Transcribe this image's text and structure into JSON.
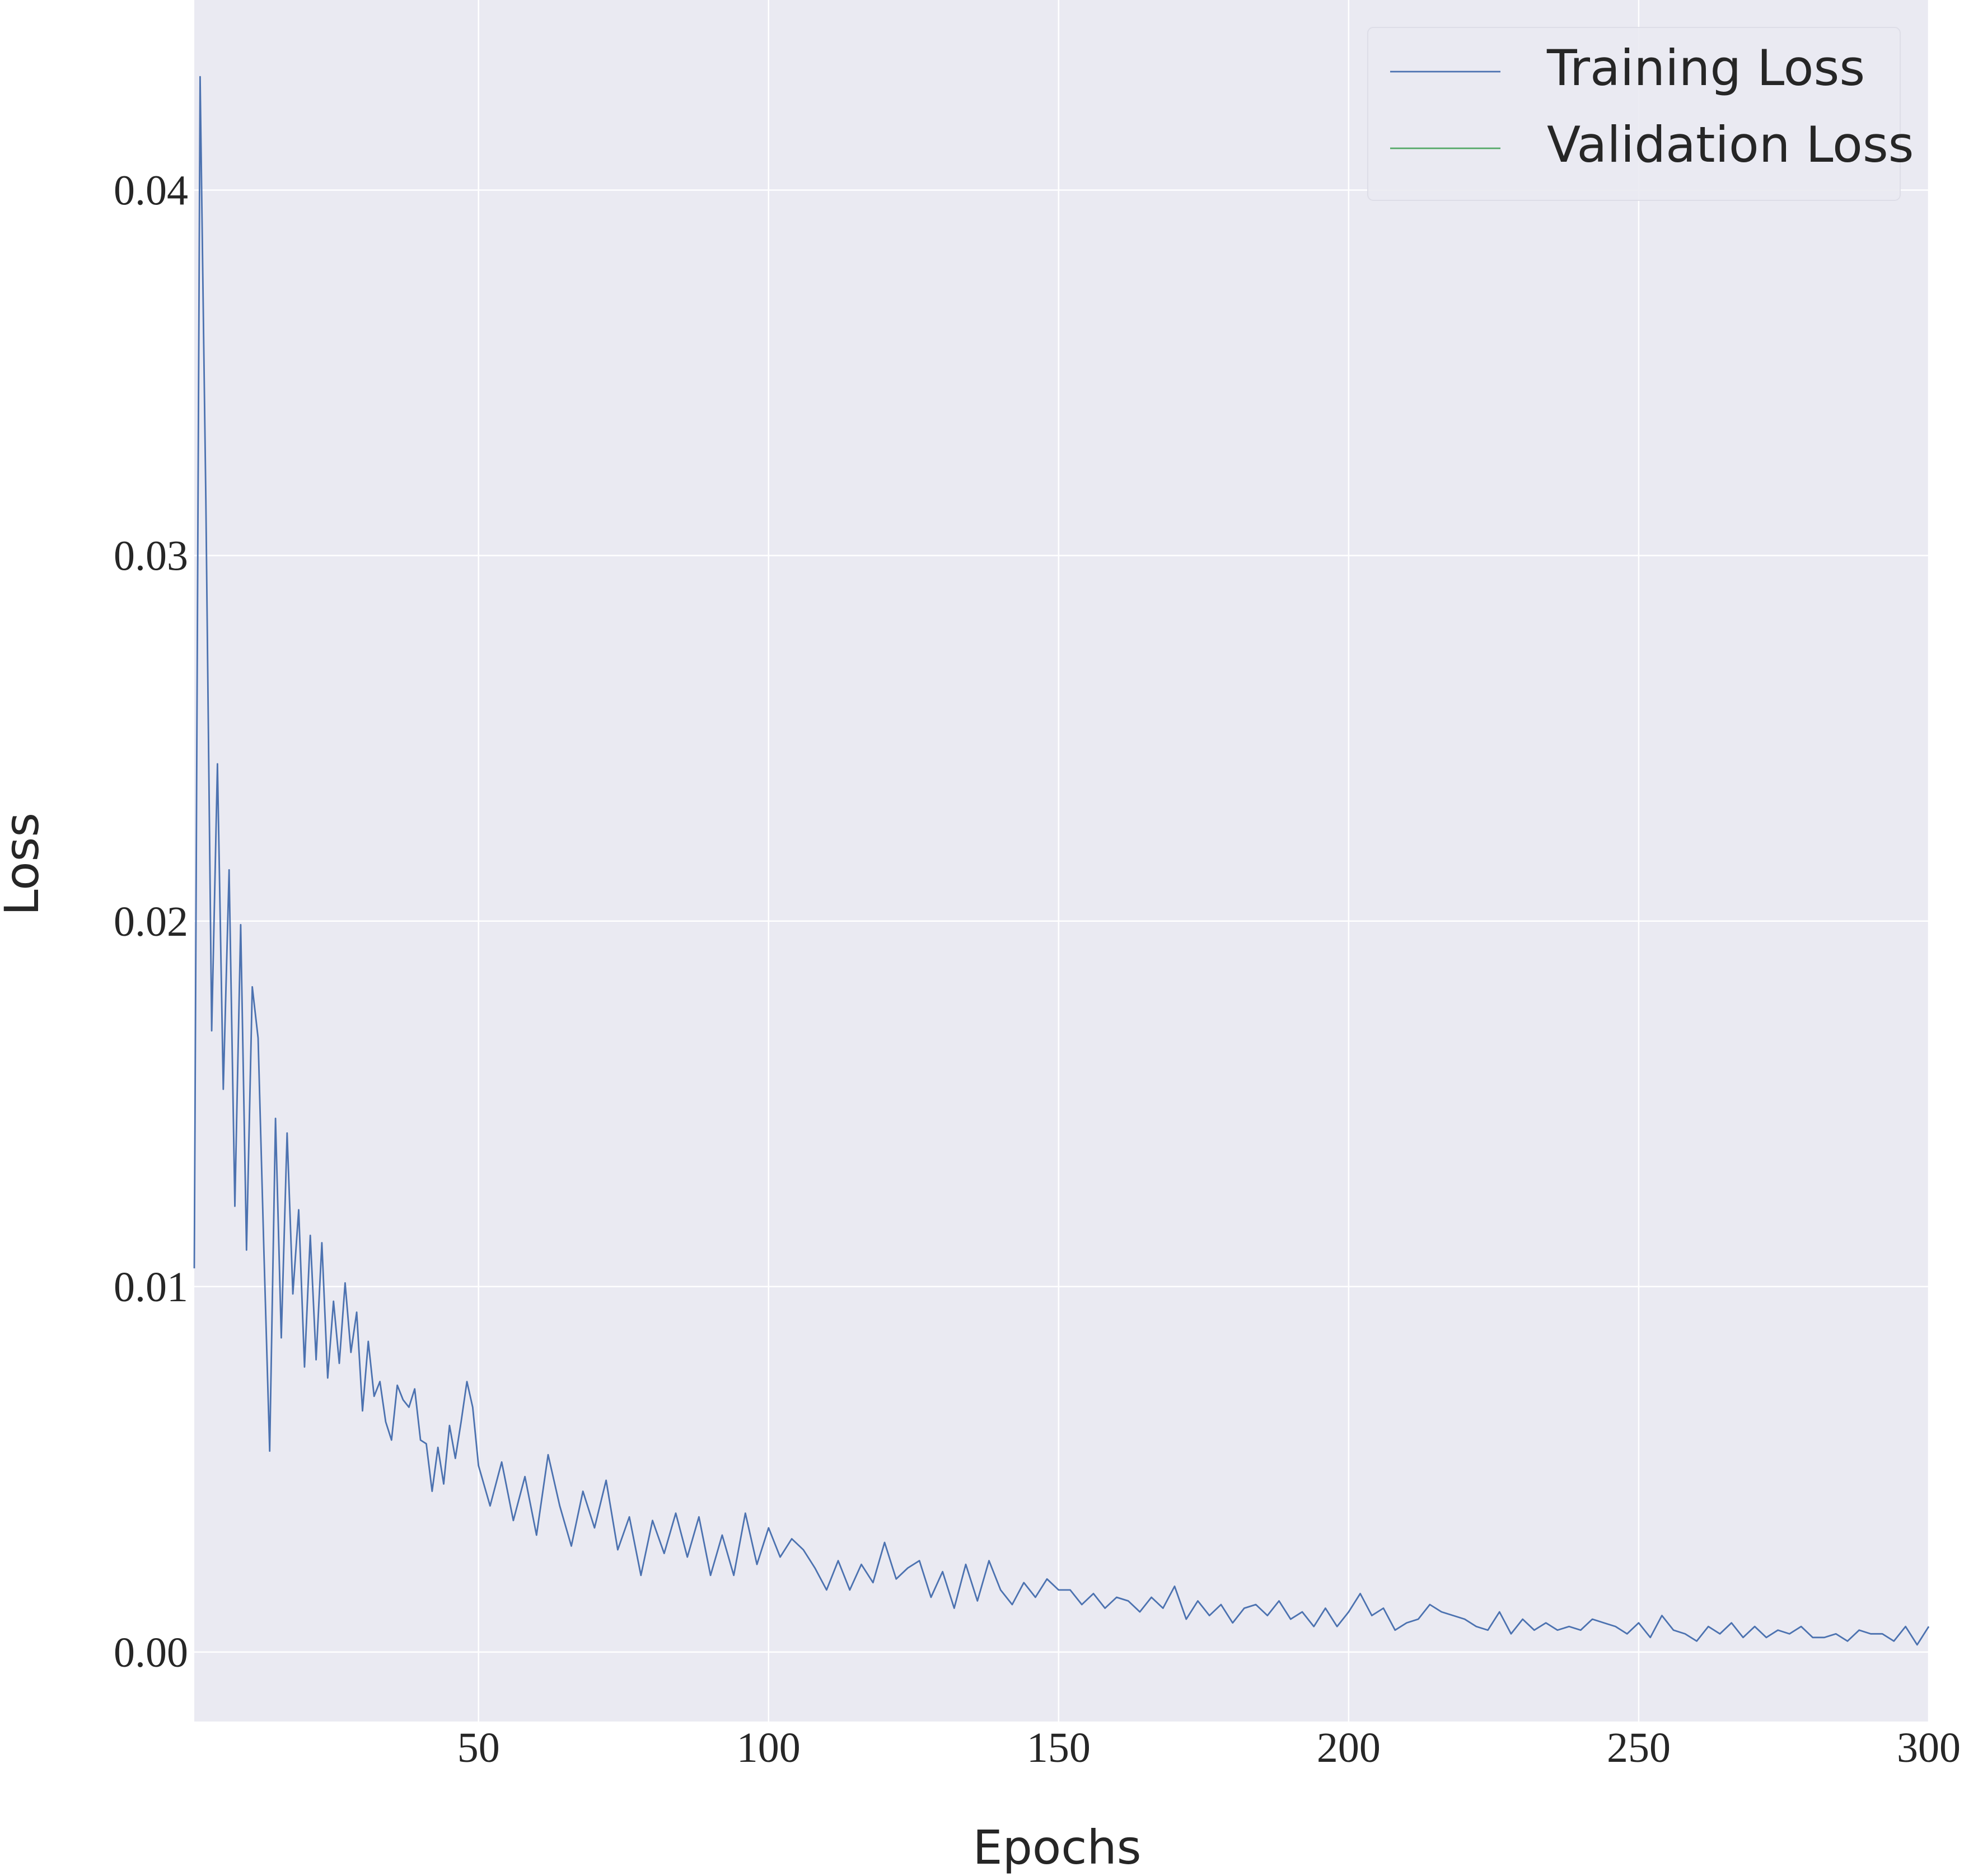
{
  "chart_data": {
    "type": "line",
    "x": [
      1,
      2,
      3,
      4,
      5,
      6,
      7,
      8,
      9,
      10,
      11,
      12,
      13,
      14,
      15,
      16,
      17,
      18,
      19,
      20,
      21,
      22,
      23,
      24,
      25,
      26,
      27,
      28,
      29,
      30,
      31,
      32,
      33,
      34,
      35,
      36,
      37,
      38,
      39,
      40,
      41,
      42,
      43,
      44,
      45,
      46,
      47,
      48,
      49,
      50,
      52,
      54,
      56,
      58,
      60,
      62,
      64,
      66,
      68,
      70,
      72,
      74,
      76,
      78,
      80,
      82,
      84,
      86,
      88,
      90,
      92,
      94,
      96,
      98,
      100,
      102,
      104,
      106,
      108,
      110,
      112,
      114,
      116,
      118,
      120,
      122,
      124,
      126,
      128,
      130,
      132,
      134,
      136,
      138,
      140,
      142,
      144,
      146,
      148,
      150,
      152,
      154,
      156,
      158,
      160,
      162,
      164,
      166,
      168,
      170,
      172,
      174,
      176,
      178,
      180,
      182,
      184,
      186,
      188,
      190,
      192,
      194,
      196,
      198,
      200,
      202,
      204,
      206,
      208,
      210,
      212,
      214,
      216,
      218,
      220,
      222,
      224,
      226,
      228,
      230,
      232,
      234,
      236,
      238,
      240,
      242,
      244,
      246,
      248,
      250,
      252,
      254,
      256,
      258,
      260,
      262,
      264,
      266,
      268,
      270,
      272,
      274,
      276,
      278,
      280,
      282,
      284,
      286,
      288,
      290,
      292,
      294,
      296,
      298,
      300
    ],
    "series": [
      {
        "name": "Training Loss",
        "color": "#4c72b0",
        "values": [
          0.0105,
          0.0431,
          0.0315,
          0.017,
          0.0243,
          0.0154,
          0.0214,
          0.0122,
          0.0199,
          0.011,
          0.0182,
          0.0168,
          0.011,
          0.0055,
          0.0146,
          0.0086,
          0.0142,
          0.0098,
          0.0121,
          0.0078,
          0.0114,
          0.008,
          0.0112,
          0.0075,
          0.0096,
          0.0079,
          0.0101,
          0.0082,
          0.0093,
          0.0066,
          0.0085,
          0.007,
          0.0074,
          0.0063,
          0.0058,
          0.0073,
          0.0069,
          0.0067,
          0.0072,
          0.0058,
          0.0057,
          0.0044,
          0.0056,
          0.0046,
          0.0062,
          0.0053,
          0.0063,
          0.0074,
          0.0067,
          0.0051,
          0.004,
          0.0052,
          0.0036,
          0.0048,
          0.0032,
          0.0054,
          0.004,
          0.0029,
          0.0044,
          0.0034,
          0.0047,
          0.0028,
          0.0037,
          0.0021,
          0.0036,
          0.0027,
          0.0038,
          0.0026,
          0.0037,
          0.0021,
          0.0032,
          0.0021,
          0.0038,
          0.0024,
          0.0034,
          0.0026,
          0.0031,
          0.0028,
          0.0023,
          0.0017,
          0.0025,
          0.0017,
          0.0024,
          0.0019,
          0.003,
          0.002,
          0.0023,
          0.0025,
          0.0015,
          0.0022,
          0.0012,
          0.0024,
          0.0014,
          0.0025,
          0.0017,
          0.0013,
          0.0019,
          0.0015,
          0.002,
          0.0017,
          0.0017,
          0.0013,
          0.0016,
          0.0012,
          0.0015,
          0.0014,
          0.0011,
          0.0015,
          0.0012,
          0.0018,
          0.0009,
          0.0014,
          0.001,
          0.0013,
          0.0008,
          0.0012,
          0.0013,
          0.001,
          0.0014,
          0.0009,
          0.0011,
          0.0007,
          0.0012,
          0.0007,
          0.0011,
          0.0016,
          0.001,
          0.0012,
          0.0006,
          0.0008,
          0.0009,
          0.0013,
          0.0011,
          0.001,
          0.0009,
          0.0007,
          0.0006,
          0.0011,
          0.0005,
          0.0009,
          0.0006,
          0.0008,
          0.0006,
          0.0007,
          0.0006,
          0.0009,
          0.0008,
          0.0007,
          0.0005,
          0.0008,
          0.0004,
          0.001,
          0.0006,
          0.0005,
          0.0003,
          0.0007,
          0.0005,
          0.0008,
          0.0004,
          0.0007,
          0.0004,
          0.0006,
          0.0005,
          0.0007,
          0.0004,
          0.0004,
          0.0005,
          0.0003,
          0.0006,
          0.0005,
          0.0005,
          0.0003,
          0.0007,
          0.0002,
          0.0007
        ]
      },
      {
        "name": "Validation Loss",
        "color": "#55a868",
        "values": [
          null,
          null,
          null,
          null,
          null,
          null,
          null,
          null,
          null,
          null,
          null,
          null,
          null,
          null,
          null,
          null,
          null,
          null,
          null,
          null,
          null,
          null,
          null,
          null,
          null,
          null,
          null,
          null,
          null,
          null,
          null,
          null,
          null,
          null,
          null,
          null,
          null,
          null,
          null,
          null,
          null,
          null,
          null,
          null,
          null,
          null,
          null,
          null,
          null,
          null,
          null,
          null,
          null,
          null,
          null,
          null,
          null,
          null,
          null,
          null,
          null,
          null,
          null,
          null,
          null,
          null,
          null,
          null,
          null,
          null,
          null,
          null,
          null,
          null,
          null,
          null,
          null,
          null,
          null,
          null,
          null,
          null,
          null,
          null,
          null,
          null,
          null,
          null,
          null,
          null,
          null,
          null,
          null,
          null,
          null,
          null,
          null,
          null,
          null,
          null,
          null,
          null,
          null,
          null,
          null,
          null,
          null,
          null,
          null,
          null,
          null,
          null,
          null,
          null,
          null,
          null,
          null,
          null,
          null,
          null,
          null,
          null,
          null,
          null,
          null,
          null,
          null,
          null,
          null,
          null,
          null,
          null,
          null,
          null,
          null,
          null,
          null,
          null,
          null,
          null,
          null,
          null,
          null,
          null,
          null,
          null,
          null,
          null,
          null,
          null,
          null,
          null,
          null,
          null,
          null,
          null,
          null,
          null,
          null,
          null,
          null,
          null,
          null,
          null,
          null,
          null,
          null,
          null,
          null,
          null,
          null,
          null,
          null,
          null,
          null
        ]
      }
    ],
    "xlabel": "Epochs",
    "ylabel": "Loss",
    "xlim": [
      1,
      300
    ],
    "ylim": [
      -0.0019,
      0.0452
    ],
    "xticks": [
      50,
      100,
      150,
      200,
      250,
      300
    ],
    "yticks": [
      {
        "value": 0,
        "label": "0.00"
      },
      0.01,
      0.02,
      0.03,
      0.04
    ],
    "grid": true,
    "legend": "upper right"
  }
}
